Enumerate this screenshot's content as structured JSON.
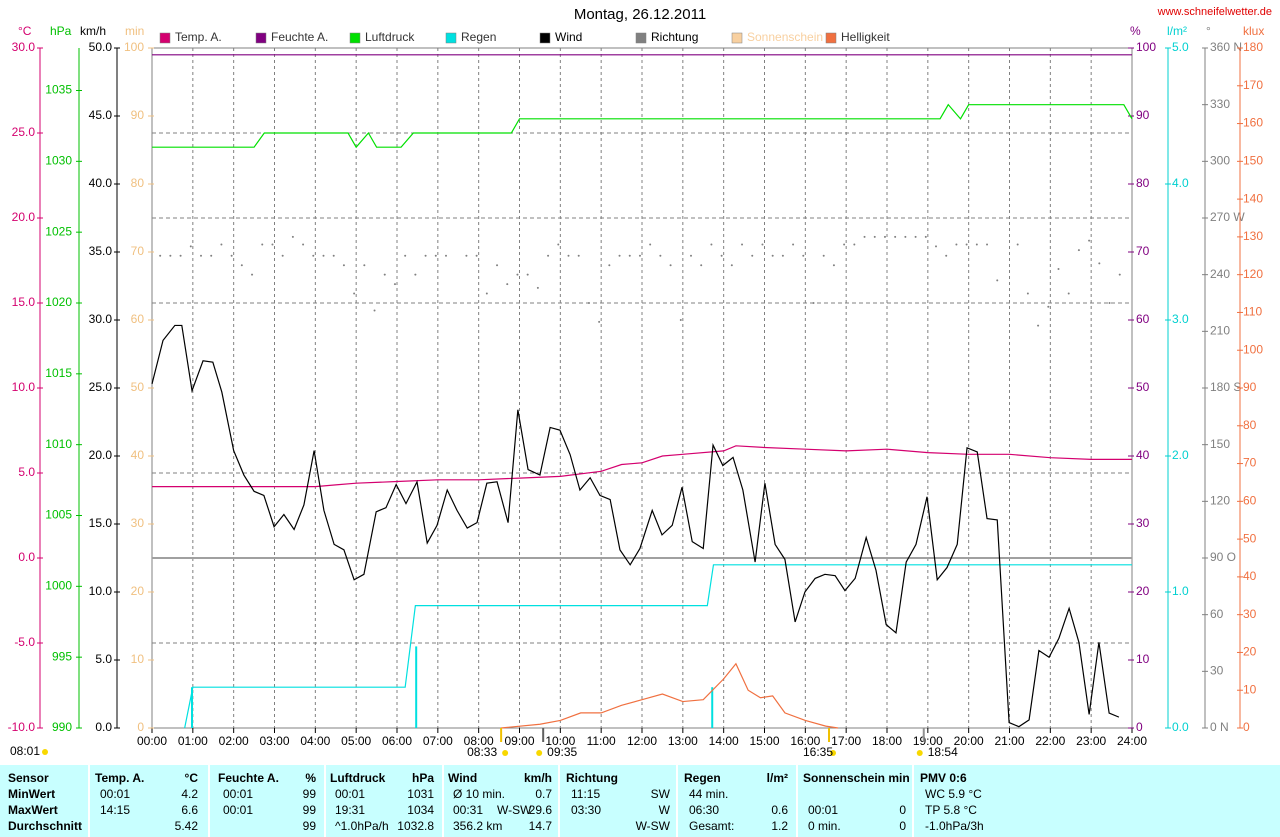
{
  "chart_data": {
    "type": "line",
    "title": "Montag, 26.12.2011",
    "source": "www.schneifelwetter.de",
    "xlim": [
      0,
      24
    ],
    "xticks": [
      {
        "value": 0,
        "label": "00:00"
      },
      {
        "value": 1,
        "label": "01:00"
      },
      {
        "value": 2,
        "label": "02:00"
      },
      {
        "value": 3,
        "label": "03:00"
      },
      {
        "value": 4,
        "label": "04:00"
      },
      {
        "value": 5,
        "label": "05:00"
      },
      {
        "value": 6,
        "label": "06:00"
      },
      {
        "value": 7,
        "label": "07:00"
      },
      {
        "value": 8,
        "label": "08:00"
      },
      {
        "value": 9,
        "label": "09:00"
      },
      {
        "value": 10,
        "label": "10:00"
      },
      {
        "value": 11,
        "label": "11:00"
      },
      {
        "value": 12,
        "label": "12:00"
      },
      {
        "value": 13,
        "label": "13:00"
      },
      {
        "value": 14,
        "label": "14:00"
      },
      {
        "value": 15,
        "label": "15:00"
      },
      {
        "value": 16,
        "label": "16:00"
      },
      {
        "value": 17,
        "label": "17:00"
      },
      {
        "value": 18,
        "label": "18:00"
      },
      {
        "value": 19,
        "label": "19:00"
      },
      {
        "value": 20,
        "label": "20:00"
      },
      {
        "value": 21,
        "label": "21:00"
      },
      {
        "value": 22,
        "label": "22:00"
      },
      {
        "value": 23,
        "label": "23:00"
      },
      {
        "value": 24,
        "label": "24:00"
      }
    ],
    "grid": true,
    "axes": [
      {
        "unit": "°C",
        "color": "#d4006f",
        "lim": [
          -10,
          30
        ],
        "ticks": [
          {
            "value": -10,
            "label": "-10.0"
          },
          {
            "value": -5,
            "label": "-5.0"
          },
          {
            "value": 0,
            "label": "0.0"
          },
          {
            "value": 5,
            "label": "5.0"
          },
          {
            "value": 10,
            "label": "10.0"
          },
          {
            "value": 15,
            "label": "15.0"
          },
          {
            "value": 20,
            "label": "20.0"
          },
          {
            "value": 25,
            "label": "25.0"
          },
          {
            "value": 30,
            "label": "30.0"
          }
        ]
      },
      {
        "unit": "hPa",
        "color": "#00c000",
        "lim": [
          990,
          1038
        ],
        "ticks": [
          990,
          995,
          1000,
          1005,
          1010,
          1015,
          1020,
          1025,
          1030,
          1035
        ]
      },
      {
        "unit": "km/h",
        "color": "#000000",
        "lim": [
          0,
          50
        ],
        "ticks": [
          {
            "value": 0,
            "label": "0.0"
          },
          {
            "value": 5,
            "label": "5.0"
          },
          {
            "value": 10,
            "label": "10.0"
          },
          {
            "value": 15,
            "label": "15.0"
          },
          {
            "value": 20,
            "label": "20.0"
          },
          {
            "value": 25,
            "label": "25.0"
          },
          {
            "value": 30,
            "label": "30.0"
          },
          {
            "value": 35,
            "label": "35.0"
          },
          {
            "value": 40,
            "label": "40.0"
          },
          {
            "value": 45,
            "label": "45.0"
          },
          {
            "value": 50,
            "label": "50.0"
          }
        ]
      },
      {
        "unit": "min",
        "color": "#f0c080",
        "lim": [
          0,
          100
        ],
        "ticks": [
          0,
          10,
          20,
          30,
          40,
          50,
          60,
          70,
          80,
          90,
          100
        ]
      },
      {
        "unit": "%",
        "color": "#800080",
        "lim": [
          0,
          100
        ],
        "ticks": [
          0,
          10,
          20,
          30,
          40,
          50,
          60,
          70,
          80,
          90,
          100
        ]
      },
      {
        "unit": "l/m²",
        "color": "#00d0d0",
        "lim": [
          0,
          5
        ],
        "ticks": [
          {
            "value": 0,
            "label": "0.0"
          },
          {
            "value": 1,
            "label": "1.0"
          },
          {
            "value": 2,
            "label": "2.0"
          },
          {
            "value": 3,
            "label": "3.0"
          },
          {
            "value": 4,
            "label": "4.0"
          },
          {
            "value": 5,
            "label": "5.0"
          }
        ]
      },
      {
        "unit": "°",
        "color": "#808080",
        "lim": [
          0,
          360
        ],
        "ticks": [
          {
            "value": 0,
            "label": "0 N"
          },
          30,
          60,
          {
            "value": 90,
            "label": "90 O"
          },
          120,
          150,
          {
            "value": 180,
            "label": "180 S"
          },
          210,
          240,
          {
            "value": 270,
            "label": "270 W"
          },
          300,
          330,
          {
            "value": 360,
            "label": "360 N"
          }
        ]
      },
      {
        "unit": "klux",
        "color": "#f07040",
        "lim": [
          0,
          180
        ],
        "ticks": [
          0,
          10,
          20,
          30,
          40,
          50,
          60,
          70,
          80,
          90,
          100,
          110,
          120,
          130,
          140,
          150,
          160,
          170,
          180
        ]
      }
    ],
    "series": [
      {
        "name": "Temp. A.",
        "color": "#d4006f",
        "axis": "°C",
        "style": "line",
        "x": [
          0,
          1,
          2,
          3,
          4,
          4.5,
          5,
          6,
          7,
          8,
          9,
          10,
          11,
          11.5,
          12,
          12.5,
          13,
          14,
          14.3,
          15,
          16,
          17,
          18,
          19,
          20,
          21,
          22,
          23,
          24
        ],
        "values": [
          4.2,
          4.2,
          4.2,
          4.2,
          4.2,
          4.3,
          4.4,
          4.5,
          4.6,
          4.6,
          4.7,
          4.8,
          5.1,
          5.5,
          5.6,
          6.0,
          6.1,
          6.3,
          6.6,
          6.5,
          6.4,
          6.3,
          6.4,
          6.2,
          6.1,
          6.1,
          5.9,
          5.8,
          5.8
        ]
      },
      {
        "name": "Feuchte A.",
        "color": "#800080",
        "axis": "%",
        "style": "line",
        "x": [
          0,
          24
        ],
        "values": [
          99,
          99
        ]
      },
      {
        "name": "Luftdruck",
        "color": "#00e000",
        "axis": "hPa",
        "style": "line",
        "x": [
          0,
          2.5,
          2.75,
          4.8,
          5.0,
          5.3,
          5.5,
          6.1,
          6.4,
          8.8,
          9.0,
          19.3,
          19.5,
          19.8,
          20.0,
          23.8,
          24
        ],
        "values": [
          1031,
          1031,
          1032,
          1032,
          1031,
          1032,
          1031,
          1031,
          1032,
          1032,
          1033,
          1033,
          1034,
          1033,
          1034,
          1034,
          1033
        ]
      },
      {
        "name": "Regen",
        "color": "#00e0e0",
        "axis": "l/m²",
        "style": "line",
        "x": [
          0.8,
          1.0,
          6.2,
          6.45,
          13.6,
          13.75,
          24
        ],
        "values": [
          0,
          0.3,
          0.3,
          0.9,
          0.9,
          1.2,
          1.2
        ],
        "bars": {
          "x": [
            0.98,
            6.47,
            13.72
          ],
          "values": [
            0.3,
            0.6,
            0.3
          ]
        }
      },
      {
        "name": "Wind",
        "color": "#000000",
        "axis": "km/h",
        "style": "line",
        "x": [
          0,
          0.27,
          0.56,
          0.73,
          0.98,
          1.25,
          1.49,
          1.71,
          2.0,
          2.25,
          2.5,
          2.74,
          2.99,
          3.23,
          3.48,
          3.72,
          3.97,
          4.21,
          4.46,
          4.7,
          4.95,
          5.19,
          5.49,
          5.73,
          5.98,
          6.22,
          6.49,
          6.74,
          6.98,
          7.23,
          7.47,
          7.72,
          7.96,
          8.2,
          8.45,
          8.72,
          8.96,
          9.21,
          9.5,
          9.75,
          9.99,
          10.24,
          10.48,
          10.73,
          10.97,
          11.22,
          11.46,
          11.71,
          11.95,
          12.25,
          12.49,
          12.74,
          12.98,
          13.23,
          13.5,
          13.74,
          13.98,
          14.23,
          14.47,
          14.77,
          15.01,
          15.26,
          15.5,
          15.75,
          15.99,
          16.24,
          16.48,
          16.73,
          16.97,
          17.22,
          17.49,
          17.73,
          17.98,
          18.22,
          18.47,
          18.71,
          18.98,
          19.23,
          19.47,
          19.72,
          19.96,
          20.21,
          20.45,
          20.7,
          20.99,
          21.23,
          21.48,
          21.72,
          21.97,
          22.21,
          22.46,
          22.7,
          22.95,
          23.19,
          23.44,
          23.68
        ],
        "values": [
          25.3,
          28.5,
          29.6,
          29.6,
          24.8,
          27.0,
          26.9,
          24.7,
          20.4,
          18.6,
          17.4,
          17.1,
          14.8,
          15.7,
          14.6,
          16.4,
          20.4,
          16.0,
          13.5,
          13.1,
          10.9,
          11.3,
          15.9,
          16.2,
          17.9,
          16.5,
          18.1,
          13.6,
          14.9,
          17.5,
          16.0,
          14.7,
          15.1,
          18.0,
          18.1,
          15.1,
          23.4,
          19.0,
          18.6,
          22.1,
          21.9,
          20.1,
          17.5,
          18.4,
          17.1,
          16.8,
          13.1,
          12.0,
          13.2,
          16.0,
          14.2,
          14.9,
          17.7,
          13.7,
          13.2,
          20.8,
          19.3,
          19.9,
          17.5,
          12.2,
          18.0,
          13.5,
          12.4,
          7.8,
          10.0,
          11.0,
          11.3,
          11.2,
          10.1,
          11.0,
          14.0,
          11.6,
          7.6,
          7.0,
          12.2,
          13.5,
          17.0,
          10.9,
          11.8,
          13.5,
          20.6,
          20.3,
          15.4,
          15.3,
          0.4,
          0.1,
          0.6,
          5.7,
          5.2,
          6.6,
          8.8,
          6.3,
          1.0,
          6.3,
          1.1,
          0.8
        ]
      },
      {
        "name": "Richtung",
        "color": "#808080",
        "axis": "°",
        "style": "dots",
        "x": [
          0.2,
          0.45,
          0.7,
          0.95,
          1.2,
          1.45,
          1.7,
          1.95,
          2.2,
          2.45,
          2.7,
          2.95,
          3.2,
          3.45,
          3.7,
          3.95,
          4.2,
          4.45,
          4.7,
          4.95,
          5.2,
          5.45,
          5.7,
          5.95,
          6.2,
          6.45,
          6.7,
          6.95,
          7.2,
          7.7,
          7.95,
          8.2,
          8.45,
          8.7,
          8.95,
          9.2,
          9.45,
          9.7,
          9.95,
          10.2,
          10.45,
          10.7,
          10.95,
          11.2,
          11.45,
          11.7,
          11.95,
          12.2,
          12.45,
          12.7,
          12.95,
          13.2,
          13.45,
          13.7,
          13.95,
          14.2,
          14.45,
          14.7,
          14.95,
          15.2,
          15.45,
          15.7,
          15.95,
          16.2,
          16.45,
          16.7,
          16.95,
          17.2,
          17.45,
          17.7,
          17.95,
          18.2,
          18.45,
          18.7,
          18.95,
          19.2,
          19.45,
          19.7,
          19.95,
          20.2,
          20.45,
          20.7,
          21.2,
          21.45,
          21.7,
          21.95,
          22.2,
          22.45,
          22.7,
          22.95,
          23.2,
          23.45,
          23.7
        ],
        "values": [
          250,
          250,
          250,
          255,
          250,
          250,
          256,
          250,
          245,
          240,
          256,
          256,
          250,
          260,
          256,
          250,
          250,
          250,
          245,
          230,
          245,
          221,
          240,
          235,
          250,
          240,
          250,
          250,
          250,
          250,
          250,
          230,
          245,
          235,
          240,
          240,
          233,
          250,
          256,
          250,
          250,
          225,
          215,
          245,
          250,
          250,
          250,
          256,
          250,
          245,
          216,
          250,
          245,
          256,
          250,
          245,
          256,
          250,
          256,
          250,
          250,
          256,
          250,
          225,
          250,
          245,
          256,
          256,
          260,
          260,
          260,
          260,
          260,
          260,
          260,
          255,
          250,
          256,
          256,
          256,
          256,
          237,
          256,
          230,
          213,
          223,
          243,
          230,
          253,
          258,
          246,
          225,
          240
        ]
      },
      {
        "name": "Sonnenschein",
        "color": "#f8d0a0",
        "axis": "min",
        "style": "line",
        "x": [],
        "values": []
      },
      {
        "name": "Helligkeit",
        "color": "#f07040",
        "axis": "klux",
        "style": "line",
        "x": [
          8.55,
          9.5,
          10.0,
          10.5,
          11.0,
          11.5,
          12.0,
          12.5,
          13.0,
          13.5,
          14.0,
          14.3,
          14.6,
          14.9,
          15.2,
          15.5,
          16.0,
          16.5,
          16.8
        ],
        "values": [
          0,
          1,
          2,
          4,
          4,
          6,
          7.5,
          9,
          7,
          7.5,
          13,
          17,
          10,
          8,
          8.5,
          4,
          2,
          0.5,
          0
        ]
      }
    ],
    "markers": [
      {
        "label": "08:33",
        "x": 8.55
      },
      {
        "label": "09:35",
        "x": 9.58
      },
      {
        "label": "16:35",
        "x": 16.58
      },
      {
        "label": "18:54",
        "x": 18.9
      }
    ],
    "daylength": "08:01"
  },
  "table": {
    "columns": [
      {
        "header": "Sensor",
        "rows": [
          {
            "left": "MinWert"
          },
          {
            "left": "MaxWert"
          },
          {
            "left": "Durchschnitt"
          }
        ]
      },
      {
        "header": "Temp. A.",
        "unit": "°C",
        "rows": [
          {
            "left": "00:01",
            "right": "4.2"
          },
          {
            "left": "14:15",
            "right": "6.6"
          },
          {
            "right": "5.42"
          }
        ]
      },
      {
        "header": "Feuchte A.",
        "unit": "%",
        "rows": [
          {
            "left": "00:01",
            "right": "99"
          },
          {
            "left": "00:01",
            "right": "99"
          },
          {
            "right": "99"
          }
        ]
      },
      {
        "header": "Luftdruck",
        "unit": "hPa",
        "rows": [
          {
            "left": "00:01",
            "right": "1031"
          },
          {
            "left": "19:31",
            "right": "1034"
          },
          {
            "left": "^1.0hPa/h",
            "right": "1032.8"
          }
        ]
      },
      {
        "header": "Wind",
        "unit": "km/h",
        "rows": [
          {
            "left": "Ø 10 min.",
            "right": "0.7"
          },
          {
            "left": "00:31",
            "middle": "W-SW",
            "right": "29.6"
          },
          {
            "left": "356.2 km",
            "right": "14.7"
          }
        ]
      },
      {
        "header": "Richtung",
        "rows": [
          {
            "left": "11:15",
            "right": "SW"
          },
          {
            "left": "03:30",
            "right": "W"
          },
          {
            "right": "W-SW"
          }
        ]
      },
      {
        "header": "Regen",
        "unit": "l/m²",
        "rows": [
          {
            "left": "44 min."
          },
          {
            "left": "06:30",
            "right": "0.6"
          },
          {
            "left": "Gesamt:",
            "right": "1.2"
          }
        ]
      },
      {
        "header": "Sonnenschein min",
        "rows": [
          null,
          {
            "left": "00:01",
            "right": "0"
          },
          {
            "left": "0 min.",
            "right": "0"
          }
        ]
      },
      {
        "header": "PMV 0:6",
        "rows": [
          {
            "left": "WC 5.9 °C"
          },
          {
            "left": "TP 5.8 °C"
          },
          {
            "left": "-1.0hPa/3h"
          }
        ]
      }
    ]
  }
}
